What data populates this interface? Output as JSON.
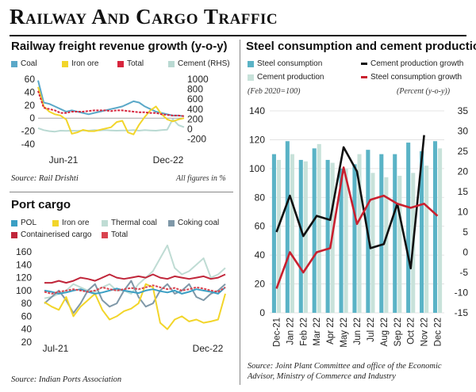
{
  "page": {
    "title": "Railway And Cargo Traffic"
  },
  "colors": {
    "coal": "#5aa8c8",
    "iron_ore": "#f2d52a",
    "total": "#d7263d",
    "cement_rhs": "#b9d9d2",
    "pol": "#3a9fc4",
    "thermal_coal": "#bfdcd4",
    "coking_coal": "#7f98a8",
    "containerised": "#c0263a",
    "port_total": "#d9434f",
    "steel_consumption": "#5ab3c6",
    "cement_production": "#c8e2da",
    "cement_growth": "#111111",
    "steel_growth": "#c9202f"
  },
  "chart_data": [
    {
      "type": "line",
      "title": "Railway freight revenue growth (y-o-y)",
      "legend": [
        "Coal",
        "Iron ore",
        "Total",
        "Cement (RHS)"
      ],
      "x_tick_labels": [
        "Jun-21",
        "Dec-22"
      ],
      "ylim": [
        -40,
        60
      ],
      "y_ticks": [
        -40,
        -20,
        0,
        20,
        40,
        60
      ],
      "y2lim": [
        -300,
        1000
      ],
      "y2_ticks": [
        -200,
        0,
        200,
        400,
        600,
        800,
        1000
      ],
      "note": "All figures in %",
      "source": "Source: Rail Drishti",
      "series": [
        {
          "name": "Coal",
          "axis": "left",
          "values": [
            58,
            24,
            22,
            18,
            14,
            10,
            12,
            10,
            8,
            6,
            8,
            10,
            12,
            14,
            16,
            18,
            22,
            26,
            24,
            18,
            14,
            10,
            8,
            6,
            4,
            4,
            3
          ]
        },
        {
          "name": "Iron ore",
          "axis": "left",
          "values": [
            48,
            18,
            10,
            6,
            4,
            -2,
            -24,
            -22,
            -18,
            -20,
            -20,
            -18,
            -16,
            -14,
            -6,
            -4,
            -22,
            -25,
            -10,
            2,
            12,
            18,
            6,
            -2,
            -5,
            -2,
            0
          ]
        },
        {
          "name": "Total",
          "axis": "left",
          "values": [
            42,
            16,
            14,
            12,
            8,
            8,
            10,
            10,
            10,
            11,
            12,
            12,
            12,
            11,
            12,
            12,
            11,
            10,
            9,
            9,
            8,
            8,
            6,
            5,
            4,
            4,
            3
          ]
        },
        {
          "name": "Cement (RHS)",
          "axis": "right",
          "values": [
            20,
            -20,
            -40,
            -50,
            -30,
            -35,
            -30,
            -35,
            -25,
            -30,
            -20,
            -25,
            -20,
            -25,
            -30,
            -25,
            -25,
            -20,
            -30,
            -20,
            -25,
            -30,
            -20,
            -10,
            200,
            80,
            40
          ]
        }
      ]
    },
    {
      "type": "line",
      "title": "Port cargo",
      "legend": [
        "POL",
        "Iron ore",
        "Thermal coal",
        "Coking coal",
        "Containerised cargo",
        "Total"
      ],
      "x_tick_labels": [
        "Jul-21",
        "Dec-22"
      ],
      "ylim": [
        20,
        160
      ],
      "y_ticks": [
        20,
        40,
        60,
        80,
        100,
        120,
        140,
        160
      ],
      "source": "Source: Indian Ports Association",
      "series": [
        {
          "name": "POL",
          "values": [
            100,
            98,
            95,
            97,
            100,
            102,
            98,
            95,
            97,
            100,
            103,
            100,
            98,
            96,
            100,
            102,
            99,
            97,
            100,
            95,
            98,
            102,
            100,
            98,
            95,
            105
          ]
        },
        {
          "name": "Iron ore",
          "values": [
            82,
            75,
            70,
            90,
            60,
            75,
            85,
            95,
            70,
            55,
            60,
            68,
            72,
            80,
            110,
            105,
            50,
            40,
            55,
            60,
            52,
            55,
            50,
            52,
            55,
            95
          ]
        },
        {
          "name": "Thermal coal",
          "values": [
            88,
            90,
            95,
            100,
            110,
            105,
            100,
            98,
            105,
            110,
            100,
            100,
            95,
            110,
            120,
            130,
            150,
            170,
            135,
            125,
            130,
            140,
            150,
            120,
            125,
            135
          ]
        },
        {
          "name": "Coking coal",
          "values": [
            80,
            90,
            100,
            85,
            65,
            80,
            100,
            110,
            85,
            75,
            80,
            100,
            115,
            90,
            75,
            80,
            100,
            110,
            95,
            100,
            110,
            90,
            85,
            95,
            100,
            110
          ]
        },
        {
          "name": "Containerised cargo",
          "values": [
            112,
            112,
            115,
            112,
            115,
            120,
            118,
            115,
            120,
            125,
            120,
            118,
            120,
            122,
            120,
            125,
            120,
            118,
            122,
            120,
            118,
            120,
            122,
            118,
            120,
            125
          ]
        },
        {
          "name": "Total",
          "values": [
            98,
            95,
            98,
            100,
            102,
            100,
            98,
            100,
            105,
            102,
            100,
            102,
            104,
            102,
            105,
            108,
            105,
            102,
            104,
            100,
            102,
            105,
            103,
            100,
            98,
            105
          ]
        }
      ]
    },
    {
      "type": "bar",
      "title": "Steel consumption and cement production",
      "legend": [
        "Steel consumption",
        "Cement production",
        "Cement production growth",
        "Steel consumption growth"
      ],
      "left_unit_note": "(Feb 2020=100)",
      "right_unit_note": "(Percent (y-o-y))",
      "categories": [
        "Dec-21",
        "Jan 22",
        "Feb 22",
        "Mar 22",
        "Apr 22",
        "May 22",
        "Jun 22",
        "Jul 22",
        "Aug 22",
        "Sep 22",
        "Oct 22",
        "Nov 22",
        "Dec 22"
      ],
      "ylim": [
        0,
        140
      ],
      "y_ticks": [
        0,
        20,
        40,
        60,
        80,
        100,
        120,
        140
      ],
      "y2lim": [
        -15,
        35
      ],
      "y2_ticks": [
        -15,
        -10,
        -5,
        0,
        5,
        10,
        15,
        20,
        25,
        30,
        35
      ],
      "source": "Source: Joint Plant Committee and office of the Economic Advisor, Ministry of Commerce and Industry",
      "series": [
        {
          "name": "Steel consumption",
          "type": "bar",
          "axis": "left",
          "values": [
            110,
            119,
            106,
            114,
            106,
            100,
            103,
            113,
            110,
            110,
            118,
            112,
            119
          ]
        },
        {
          "name": "Cement production",
          "type": "bar",
          "axis": "left",
          "values": [
            106,
            110,
            105,
            117,
            104,
            100,
            110,
            97,
            94,
            95,
            97,
            102,
            114
          ]
        },
        {
          "name": "Cement production growth",
          "type": "line",
          "axis": "right",
          "values": [
            5,
            14,
            4,
            9,
            8,
            26,
            20,
            1,
            2,
            12,
            -4,
            29,
            null
          ]
        },
        {
          "name": "Steel consumption growth",
          "type": "line",
          "axis": "right",
          "values": [
            -9,
            0,
            -5,
            0,
            1,
            21,
            7,
            13,
            14,
            12,
            11,
            12,
            9
          ]
        }
      ]
    }
  ]
}
